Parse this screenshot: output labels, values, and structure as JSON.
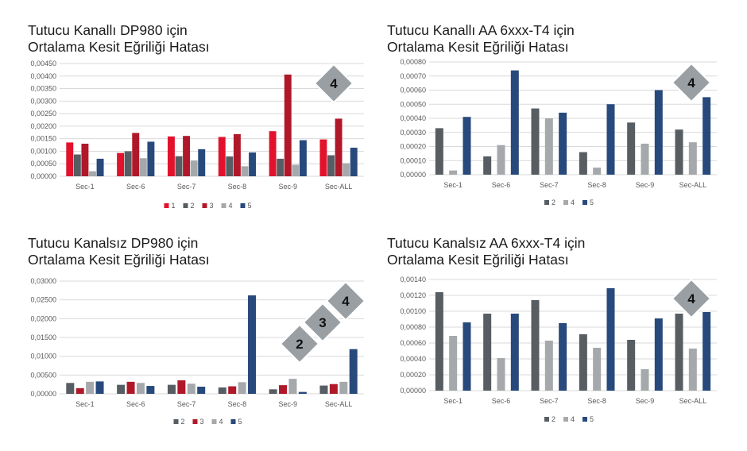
{
  "colors": {
    "1": "#e2122d",
    "2": "#565d63",
    "3": "#b0182a",
    "4": "#a6a9ac",
    "5": "#28497c",
    "grid": "#d9d9d9",
    "badge": "#9a9fa4"
  },
  "chart_data": [
    {
      "type": "bar",
      "title_lines": [
        "Tutucu Kanallı DP980 için",
        "Ortalama Kesit Eğriliği Hatası"
      ],
      "categories": [
        "Sec-1",
        "Sec-6",
        "Sec-7",
        "Sec-8",
        "Sec-9",
        "Sec-ALL"
      ],
      "series": [
        {
          "name": "1",
          "values": [
            0.00135,
            0.00093,
            0.00159,
            0.00157,
            0.0018,
            0.00147
          ]
        },
        {
          "name": "2",
          "values": [
            0.00087,
            0.001,
            0.0008,
            0.00079,
            0.0007,
            0.00084
          ]
        },
        {
          "name": "3",
          "values": [
            0.0013,
            0.00173,
            0.00161,
            0.00168,
            0.00406,
            0.0023
          ]
        },
        {
          "name": "4",
          "values": [
            0.0002,
            0.00072,
            0.00063,
            0.0004,
            0.00046,
            0.00052
          ]
        },
        {
          "name": "5",
          "values": [
            0.0007,
            0.00138,
            0.00108,
            0.00095,
            0.00144,
            0.00114
          ]
        }
      ],
      "yticks": [
        "0,00000",
        "0,00050",
        "0,00100",
        "0,00150",
        "0,00200",
        "0,00250",
        "0,00300",
        "0,00350",
        "0,00400",
        "0,00450"
      ],
      "ylim": [
        0,
        0.0045
      ],
      "badges": [
        "4"
      ],
      "grid": true,
      "legend": "bottom"
    },
    {
      "type": "bar",
      "title_lines": [
        "Tutucu Kanallı AA 6xxx-T4 için",
        "Ortalama Kesit Eğriliği Hatası"
      ],
      "categories": [
        "Sec-1",
        "Sec-6",
        "Sec-7",
        "Sec-8",
        "Sec-9",
        "Sec-ALL"
      ],
      "series": [
        {
          "name": "2",
          "values": [
            0.00033,
            0.00013,
            0.00047,
            0.00016,
            0.00037,
            0.00032
          ]
        },
        {
          "name": "4",
          "values": [
            3e-05,
            0.00021,
            0.0004,
            5e-05,
            0.00022,
            0.00023
          ]
        },
        {
          "name": "5",
          "values": [
            0.00041,
            0.00074,
            0.00044,
            0.0005,
            0.0006,
            0.00055
          ]
        }
      ],
      "yticks": [
        "0,00000",
        "0,00010",
        "0,00020",
        "0,00030",
        "0,00040",
        "0,00050",
        "0,00060",
        "0,00070",
        "0,00080"
      ],
      "ylim": [
        0,
        0.0008
      ],
      "badges": [
        "4"
      ],
      "grid": true,
      "legend": "bottom"
    },
    {
      "type": "bar",
      "title_lines": [
        "Tutucu Kanalsız DP980 için",
        "Ortalama Kesit Eğriliği Hatası"
      ],
      "categories": [
        "Sec-1",
        "Sec-6",
        "Sec-7",
        "Sec-8",
        "Sec-9",
        "Sec-ALL"
      ],
      "series": [
        {
          "name": "2",
          "values": [
            0.0029,
            0.0024,
            0.0024,
            0.0017,
            0.0012,
            0.0022
          ]
        },
        {
          "name": "3",
          "values": [
            0.0015,
            0.0032,
            0.0036,
            0.002,
            0.0023,
            0.0026
          ]
        },
        {
          "name": "4",
          "values": [
            0.0032,
            0.0029,
            0.0027,
            0.0031,
            0.004,
            0.0032
          ]
        },
        {
          "name": "5",
          "values": [
            0.0033,
            0.0021,
            0.0019,
            0.0262,
            0.0005,
            0.0119
          ]
        }
      ],
      "yticks": [
        "0,00000",
        "0,00500",
        "0,01000",
        "0,01500",
        "0,02000",
        "0,02500",
        "0,03000"
      ],
      "ylim": [
        0,
        0.03
      ],
      "badges": [
        "2",
        "3",
        "4"
      ],
      "grid": true,
      "legend": "bottom"
    },
    {
      "type": "bar",
      "title_lines": [
        "Tutucu Kanalsız AA 6xxx-T4 için",
        "Ortalama Kesit Eğriliği Hatası"
      ],
      "categories": [
        "Sec-1",
        "Sec-6",
        "Sec-7",
        "Sec-8",
        "Sec-9",
        "Sec-ALL"
      ],
      "series": [
        {
          "name": "2",
          "values": [
            0.00124,
            0.00097,
            0.00114,
            0.00071,
            0.00064,
            0.00097
          ]
        },
        {
          "name": "4",
          "values": [
            0.00069,
            0.00041,
            0.00063,
            0.00054,
            0.00027,
            0.00053
          ]
        },
        {
          "name": "5",
          "values": [
            0.00086,
            0.00097,
            0.00085,
            0.00129,
            0.00091,
            0.00099
          ]
        }
      ],
      "yticks": [
        "0,00000",
        "0,00020",
        "0,00040",
        "0,00060",
        "0,00080",
        "0,00100",
        "0,00120",
        "0,00140"
      ],
      "ylim": [
        0,
        0.0014
      ],
      "badges": [
        "4"
      ],
      "grid": true,
      "legend": "bottom"
    }
  ]
}
